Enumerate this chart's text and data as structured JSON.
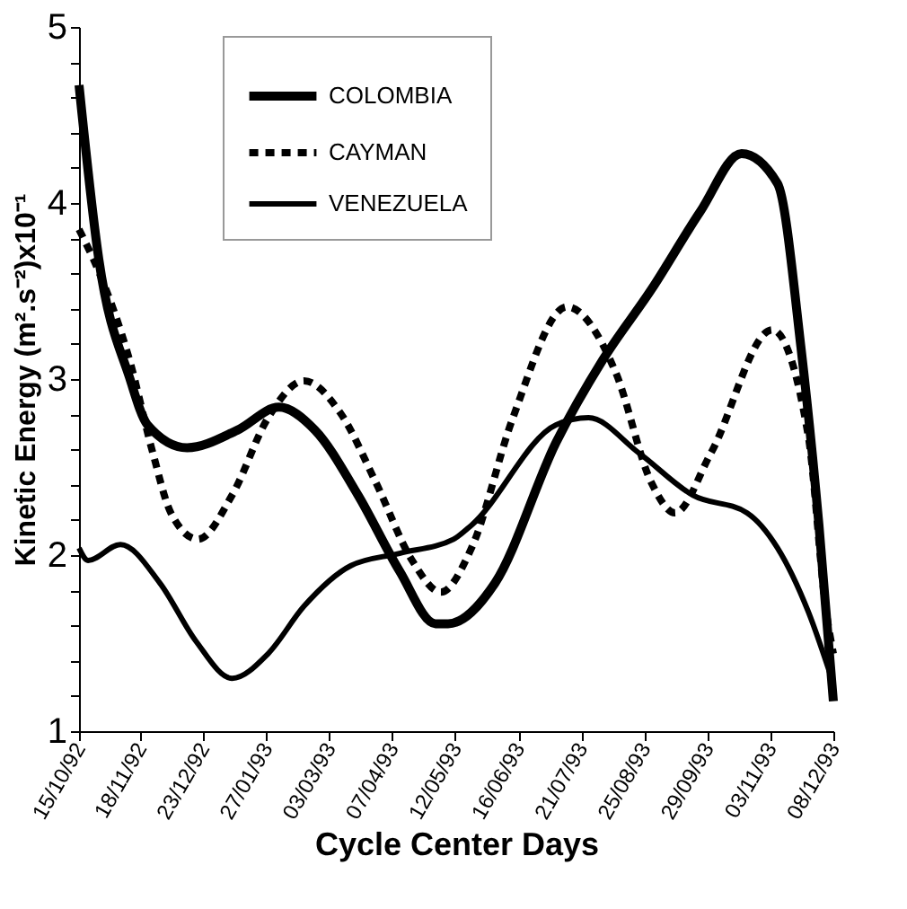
{
  "chart_data": {
    "type": "line",
    "xlabel": "Cycle Center Days",
    "ylabel": "Kinetic Energy (m².s⁻²)x10⁻¹",
    "xlim": [
      "1992-10-15",
      "1993-12-08"
    ],
    "xticks": [
      {
        "value": "1992-10-15",
        "label": "15/10/92"
      },
      {
        "value": "1992-11-18",
        "label": "18/11/92"
      },
      {
        "value": "1992-12-23",
        "label": "23/12/92"
      },
      {
        "value": "1993-01-27",
        "label": "27/01/93"
      },
      {
        "value": "1993-03-03",
        "label": "03/03/93"
      },
      {
        "value": "1993-04-07",
        "label": "07/04/93"
      },
      {
        "value": "1993-05-12",
        "label": "12/05/93"
      },
      {
        "value": "1993-06-16",
        "label": "16/06/93"
      },
      {
        "value": "1993-07-21",
        "label": "21/07/93"
      },
      {
        "value": "1993-08-25",
        "label": "25/08/93"
      },
      {
        "value": "1993-09-29",
        "label": "29/09/93"
      },
      {
        "value": "1993-11-03",
        "label": "03/11/93"
      },
      {
        "value": "1993-12-08",
        "label": "08/12/93"
      }
    ],
    "ylim": [
      1,
      5
    ],
    "yticks": [
      1,
      {
        "value": 1.2,
        "label": null
      },
      {
        "value": 1.4,
        "label": null
      },
      {
        "value": 1.6,
        "label": null
      },
      {
        "value": 1.8,
        "label": null
      },
      2,
      {
        "value": 2.2,
        "label": null
      },
      {
        "value": 2.4,
        "label": null
      },
      {
        "value": 2.6,
        "label": null
      },
      {
        "value": 2.8,
        "label": null
      },
      3,
      {
        "value": 3.2,
        "label": null
      },
      {
        "value": 3.4,
        "label": null
      },
      {
        "value": 3.6,
        "label": null
      },
      {
        "value": 3.8,
        "label": null
      },
      4,
      {
        "value": 4.2,
        "label": null
      },
      {
        "value": 4.4,
        "label": null
      },
      {
        "value": 4.6,
        "label": null
      },
      {
        "value": 4.8,
        "label": null
      },
      5
    ],
    "grid": false,
    "legend": "top",
    "marker": "none",
    "series": [
      {
        "name": "COLOMBIA",
        "color": "#000000",
        "line_style": "solid",
        "x": [
          "1992-10-15",
          "1992-10-26",
          "1992-11-12",
          "1992-11-22",
          "1992-12-14",
          "1993-01-11",
          "1993-02-03",
          "1993-02-23",
          "1993-03-19",
          "1993-04-11",
          "1993-05-01",
          "1993-05-08",
          "1993-06-03",
          "1993-07-07",
          "1993-08-02",
          "1993-08-29",
          "1993-09-25",
          "1993-10-18",
          "1993-11-07",
          "1993-11-20",
          "1993-11-30",
          "1993-12-08"
        ],
        "values": [
          4.67,
          3.68,
          3.01,
          2.74,
          2.61,
          2.71,
          2.84,
          2.71,
          2.34,
          1.91,
          1.61,
          1.61,
          1.84,
          2.64,
          3.11,
          3.51,
          3.95,
          4.28,
          4.11,
          3.18,
          2.17,
          1.17
        ]
      },
      {
        "name": "CAYMAN",
        "color": "#000000",
        "line_style": "dashed",
        "x": [
          "1992-10-15",
          "1992-10-26",
          "1992-11-12",
          "1992-11-25",
          "1992-12-05",
          "1992-12-20",
          "1993-01-08",
          "1993-01-28",
          "1993-02-17",
          "1993-03-09",
          "1993-03-29",
          "1993-04-18",
          "1993-05-04",
          "1993-05-21",
          "1993-06-13",
          "1993-07-13",
          "1993-08-09",
          "1993-08-29",
          "1993-09-11",
          "1993-10-01",
          "1993-11-04",
          "1993-11-24",
          "1993-12-04",
          "1993-12-08"
        ],
        "values": [
          3.85,
          3.61,
          3.11,
          2.58,
          2.24,
          2.09,
          2.34,
          2.78,
          2.99,
          2.81,
          2.41,
          1.97,
          1.79,
          2.04,
          2.78,
          3.41,
          3.04,
          2.41,
          2.24,
          2.58,
          3.28,
          2.68,
          1.68,
          1.44
        ]
      },
      {
        "name": "VENEZUELA",
        "color": "#000000",
        "line_style": "solid",
        "x": [
          "1992-10-15",
          "1992-10-20",
          "1992-11-07",
          "1992-11-29",
          "1992-12-19",
          "1993-01-08",
          "1993-01-28",
          "1993-02-17",
          "1993-03-15",
          "1993-04-11",
          "1993-05-11",
          "1993-05-21",
          "1993-07-07",
          "1993-07-25",
          "1993-08-22",
          "1993-09-21",
          "1993-10-21",
          "1993-11-07",
          "1993-11-24",
          "1993-12-08"
        ],
        "values": [
          2.04,
          1.97,
          2.06,
          1.84,
          1.51,
          1.3,
          1.44,
          1.71,
          1.94,
          2.01,
          2.09,
          2.17,
          2.74,
          2.78,
          2.58,
          2.34,
          2.24,
          2.04,
          1.68,
          1.27
        ]
      }
    ]
  }
}
